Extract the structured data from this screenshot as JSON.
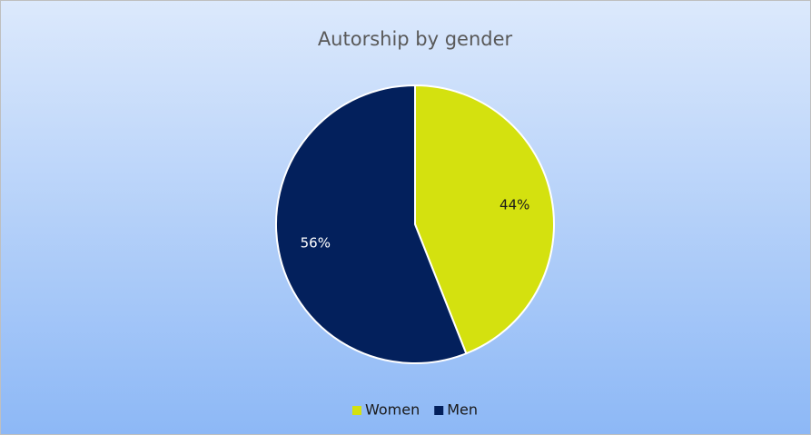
{
  "chart_data": {
    "type": "pie",
    "title": "Autorship by gender",
    "categories": [
      "Women",
      "Men"
    ],
    "values": [
      44,
      56
    ],
    "value_labels": [
      "44%",
      "56%"
    ],
    "colors": [
      "#d4e10f",
      "#03205c"
    ],
    "legend": "bottom"
  }
}
